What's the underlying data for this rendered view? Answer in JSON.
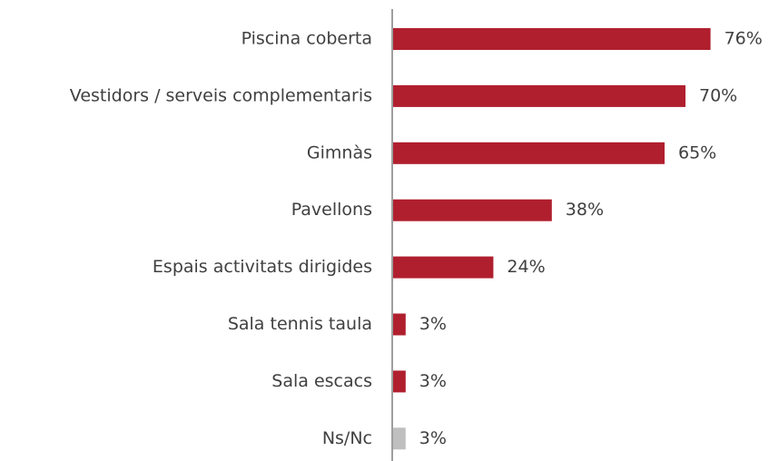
{
  "chart_data": {
    "type": "barh",
    "categories": [
      "Piscina coberta",
      "Vestidors / serveis complementaris",
      "Gimnàs",
      "Pavellons",
      "Espais activitats dirigides",
      "Sala tennis taula",
      "Sala escacs",
      "Ns/Nc"
    ],
    "values": [
      76,
      70,
      65,
      38,
      24,
      3,
      3,
      3
    ],
    "value_labels": [
      "76%",
      "70%",
      "65%",
      "38%",
      "24%",
      "3%",
      "3%",
      "3%"
    ],
    "colors": [
      "#b01f2e",
      "#b01f2e",
      "#b01f2e",
      "#b01f2e",
      "#b01f2e",
      "#b01f2e",
      "#b01f2e",
      "#bfbfbf"
    ]
  }
}
